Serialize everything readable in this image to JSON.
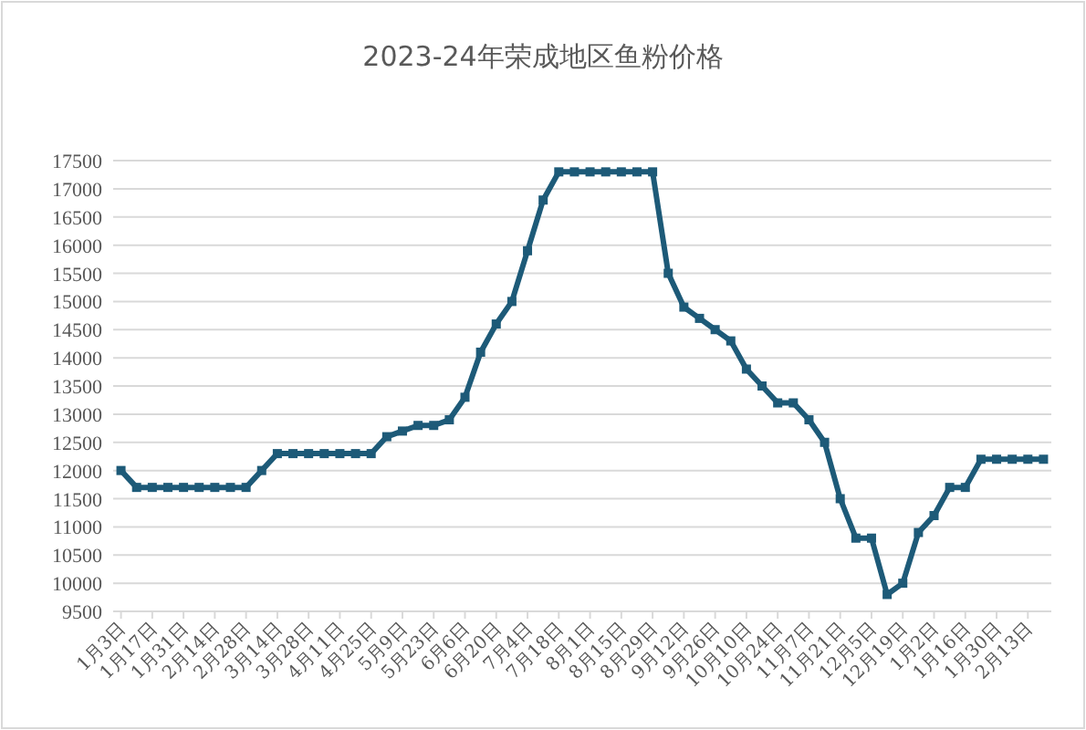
{
  "chart_data": {
    "type": "line",
    "title": "2023-24年荣成地区鱼粉价格",
    "categories": [
      "1月3日",
      null,
      "1月17日",
      null,
      "1月31日",
      null,
      "2月14日",
      null,
      "2月28日",
      null,
      "3月14日",
      null,
      "3月28日",
      null,
      "4月11日",
      null,
      "4月25日",
      null,
      "5月9日",
      null,
      "5月23日",
      null,
      "6月6日",
      null,
      "6月20日",
      null,
      "7月4日",
      null,
      "7月18日",
      null,
      "8月1日",
      null,
      "8月15日",
      null,
      "8月29日",
      null,
      "9月12日",
      null,
      "9月26日",
      null,
      "10月10日",
      null,
      "10月24日",
      null,
      "11月7日",
      null,
      "11月21日",
      null,
      "12月5日",
      null,
      "12月19日",
      null,
      "1月2日",
      null,
      "1月16日",
      null,
      "1月30日",
      null,
      "2月13日",
      null
    ],
    "series": [
      {
        "color": "#1d5a78",
        "values": [
          12000,
          11700,
          11700,
          11700,
          11700,
          11700,
          11700,
          11700,
          11700,
          12000,
          12300,
          12300,
          12300,
          12300,
          12300,
          12300,
          12300,
          12600,
          12700,
          12800,
          12800,
          12900,
          13300,
          14100,
          14600,
          15000,
          15900,
          16800,
          17300,
          17300,
          17300,
          17300,
          17300,
          17300,
          17300,
          15500,
          14900,
          14700,
          14500,
          14300,
          13800,
          13500,
          13200,
          13200,
          12900,
          12500,
          11500,
          10800,
          10800,
          9800,
          10000,
          10900,
          11200,
          11700,
          11700,
          12200,
          12200,
          12200,
          12200,
          12200
        ]
      }
    ],
    "ylim": [
      9500,
      17500
    ],
    "yticks": [
      9500,
      10000,
      10500,
      11000,
      11500,
      12000,
      12500,
      13000,
      13500,
      14000,
      14500,
      15000,
      15500,
      16000,
      16500,
      17000,
      17500
    ],
    "grid": "y",
    "marker": "square",
    "line_style": "solid"
  }
}
